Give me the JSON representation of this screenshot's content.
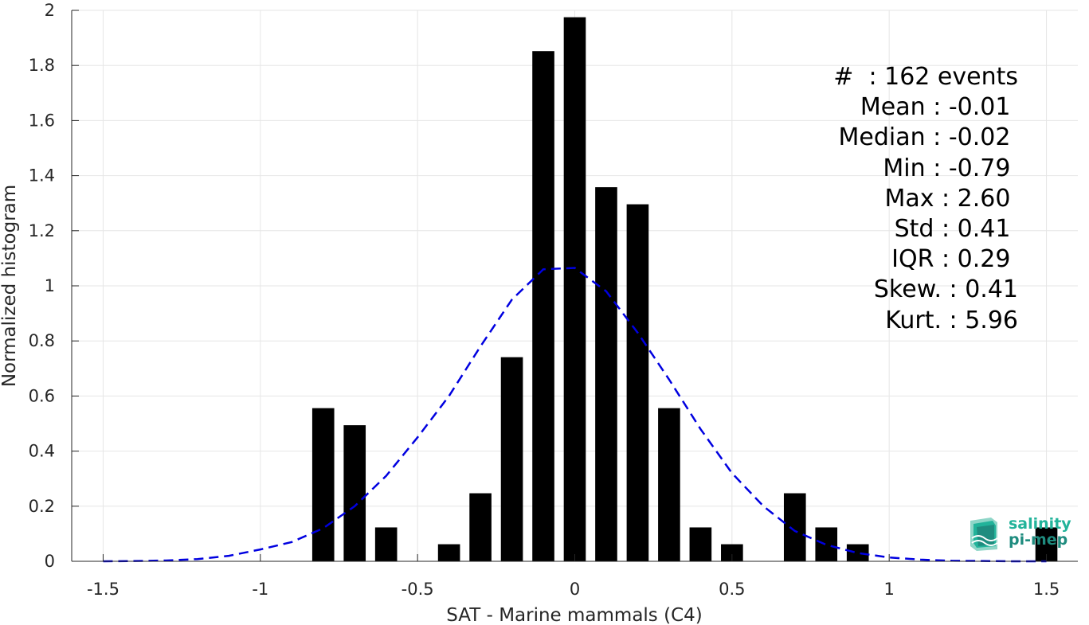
{
  "chart_data": {
    "type": "bar",
    "xlabel": "SAT - Marine mammals (C4)",
    "ylabel": "Normalized histogram",
    "xlim": [
      -1.6,
      1.6
    ],
    "ylim": [
      0,
      2
    ],
    "xticks": [
      "-1.5",
      "-1",
      "-0.5",
      "0",
      "0.5",
      "1",
      "1.5"
    ],
    "yticks": [
      "0",
      "0.2",
      "0.4",
      "0.6",
      "0.8",
      "1",
      "1.2",
      "1.4",
      "1.6",
      "1.8",
      "2"
    ],
    "grid": true,
    "bar_width": 0.07,
    "bars": {
      "x": [
        -0.8,
        -0.7,
        -0.6,
        -0.4,
        -0.3,
        -0.2,
        -0.1,
        0.0,
        0.1,
        0.2,
        0.3,
        0.4,
        0.5,
        0.7,
        0.8,
        0.9,
        1.5
      ],
      "values": [
        0.556,
        0.494,
        0.123,
        0.062,
        0.247,
        0.741,
        1.852,
        1.975,
        1.358,
        1.296,
        0.556,
        0.123,
        0.062,
        0.247,
        0.123,
        0.062,
        0.123
      ],
      "color": "#000000"
    },
    "fit_curve": {
      "style": "dashed",
      "color": "#0000e0",
      "x": [
        -1.5,
        -1.4,
        -1.3,
        -1.2,
        -1.1,
        -1.0,
        -0.9,
        -0.8,
        -0.7,
        -0.6,
        -0.5,
        -0.4,
        -0.3,
        -0.2,
        -0.1,
        0.0,
        0.1,
        0.2,
        0.3,
        0.4,
        0.5,
        0.6,
        0.7,
        0.8,
        0.9,
        1.0,
        1.1,
        1.2,
        1.3,
        1.4,
        1.5
      ],
      "y": [
        0.0,
        0.001,
        0.003,
        0.008,
        0.02,
        0.043,
        0.07,
        0.12,
        0.2,
        0.31,
        0.45,
        0.6,
        0.78,
        0.95,
        1.06,
        1.065,
        0.98,
        0.83,
        0.66,
        0.48,
        0.32,
        0.2,
        0.11,
        0.06,
        0.03,
        0.014,
        0.006,
        0.002,
        0.001,
        0.0,
        0.0
      ]
    }
  },
  "stats": [
    "#  : 162 events",
    "Mean : -0.01 ",
    "Median : -0.02 ",
    "Min : -0.79 ",
    "Max : 2.60 ",
    "Std : 0.41 ",
    "IQR : 0.29 ",
    "Skew. : 0.41",
    "Kurt. : 5.96"
  ],
  "logo": {
    "line1": "salinity",
    "line2": "pi-mep",
    "colors": [
      "#22b39a",
      "#1f8c7f",
      "#8fd6c8"
    ]
  }
}
